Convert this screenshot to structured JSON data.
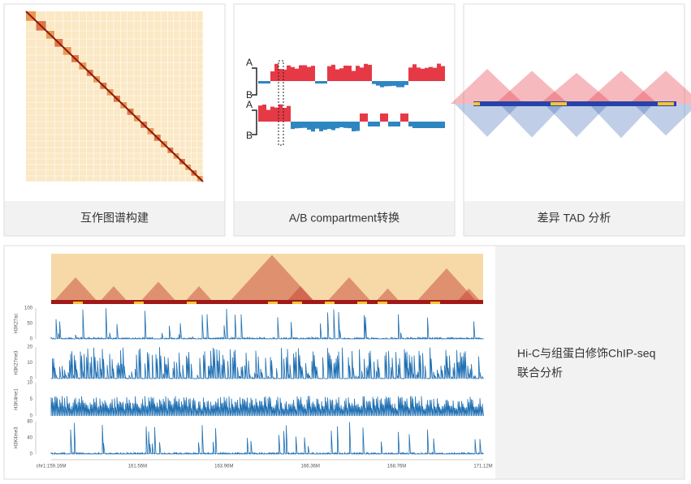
{
  "cards": [
    {
      "caption": "互作图谱构建"
    },
    {
      "caption": "A/B compartment转换",
      "labels": [
        "A",
        "B",
        "A",
        "B"
      ]
    },
    {
      "caption": "差异 TAD 分析"
    }
  ],
  "joint": {
    "caption_lines": [
      "Hi-C与组蛋白修饰ChIP-seq",
      "联合分析"
    ],
    "tracks": [
      {
        "name": "H3K27ac",
        "yticks": [
          "100",
          "50",
          "0"
        ]
      },
      {
        "name": "H3K27me3",
        "yticks": [
          "20",
          "10",
          "0"
        ]
      },
      {
        "name": "H3K4me1",
        "yticks": [
          "10",
          "5",
          "0"
        ]
      },
      {
        "name": "H3K4me3",
        "yticks": [
          "80",
          "40",
          "0"
        ]
      }
    ],
    "xticks": [
      "chr1:159.16M",
      "161.56M",
      "163.96M",
      "166.36M",
      "168.76M",
      "171.12M"
    ]
  }
}
